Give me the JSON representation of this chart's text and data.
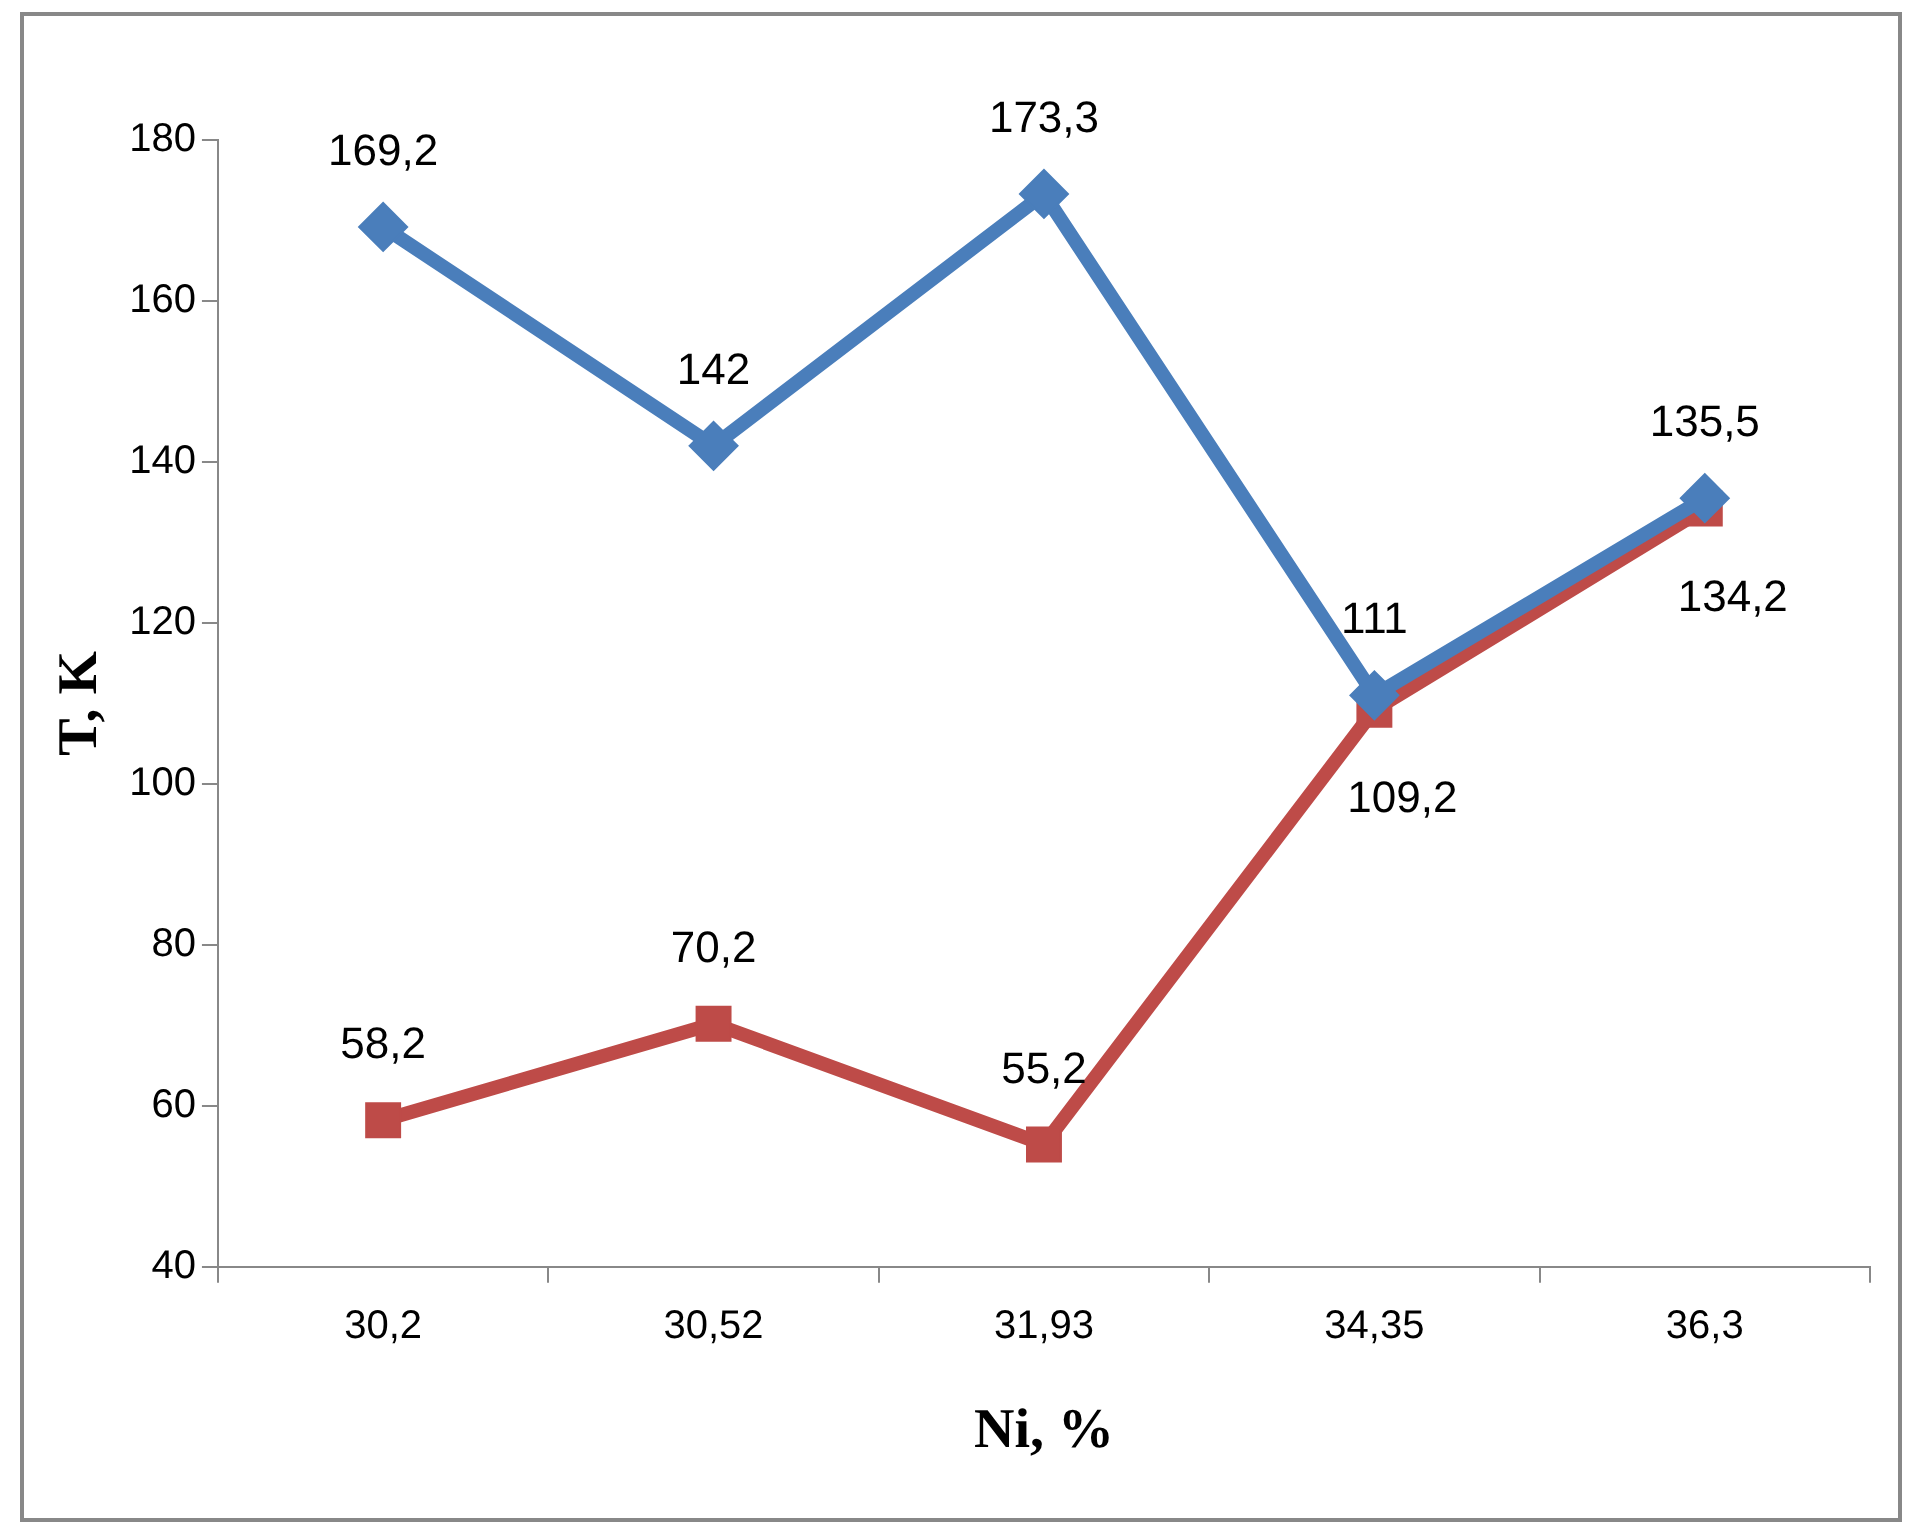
{
  "chart_data": {
    "type": "line",
    "xlabel": "Ni, %",
    "ylabel": "T, K",
    "categories": [
      "30,2",
      "30,52",
      "31,93",
      "34,35",
      "36,3"
    ],
    "series": [
      {
        "color": "#4a7ebb",
        "marker": "diamond",
        "values": [
          169.2,
          142,
          173.3,
          111,
          135.5
        ],
        "value_labels": [
          "169,2",
          "142",
          "173,3",
          "111",
          "135,5"
        ]
      },
      {
        "color": "#be4b48",
        "marker": "square",
        "values": [
          58.2,
          70.2,
          55.2,
          109.2,
          134.2
        ],
        "value_labels": [
          "58,2",
          "70,2",
          "55,2",
          "109,2",
          "134,2"
        ]
      }
    ],
    "ylim": [
      40,
      180
    ],
    "yticks": [
      40,
      60,
      80,
      100,
      120,
      140,
      160,
      180
    ],
    "grid": false,
    "legend": false
  }
}
